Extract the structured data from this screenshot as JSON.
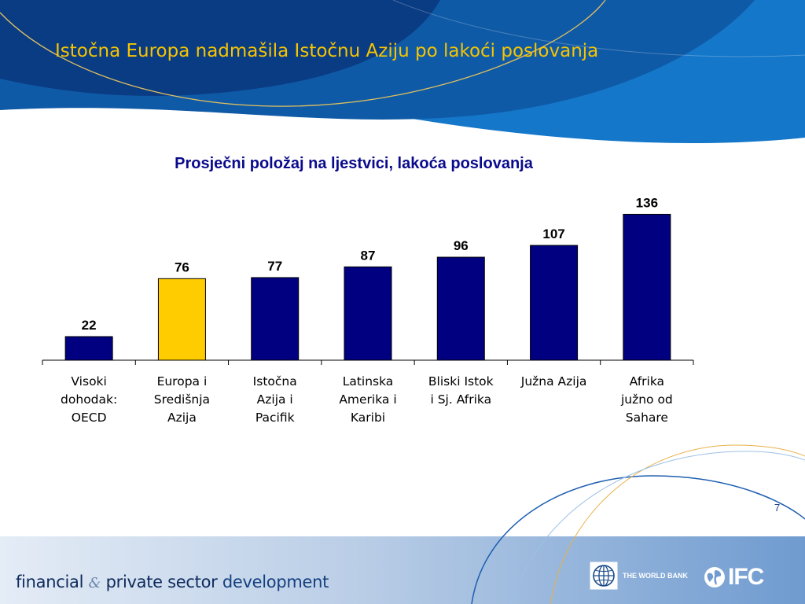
{
  "slide": {
    "title": "Istočna Europa nadmašila Istočnu Aziju po lakoći poslovanja",
    "page_number": "7"
  },
  "footer": {
    "brand_part1": "financial",
    "brand_amp": "&",
    "brand_part2": "private sector",
    "brand_part3": "development",
    "wb_label": "THE WORLD BANK",
    "ifc_label": "IFC"
  },
  "colors": {
    "bar": "#000080",
    "highlight_bar": "#ffcc00",
    "title": "#f6c400",
    "chart_title": "#0a0a8c"
  },
  "chart_data": {
    "type": "bar",
    "title": "Prosječni položaj na ljestvici, lakoća poslovanja",
    "categories": [
      [
        "Visoki",
        "dohodak:",
        "OECD"
      ],
      [
        "Europa i",
        "Središnja",
        "Azija"
      ],
      [
        "Istočna",
        "Azija i",
        "Pacifik"
      ],
      [
        "Latinska",
        "Amerika i",
        "Karibi"
      ],
      [
        "Bliski Istok",
        "i Sj. Afrika"
      ],
      [
        "Južna Azija"
      ],
      [
        "Afrika",
        "južno od",
        "Sahare"
      ]
    ],
    "values": [
      22,
      76,
      77,
      87,
      96,
      107,
      136
    ],
    "highlight_index": 1,
    "data_labels": true,
    "ylim": [
      0,
      140
    ],
    "grid": false,
    "legend": "none"
  }
}
